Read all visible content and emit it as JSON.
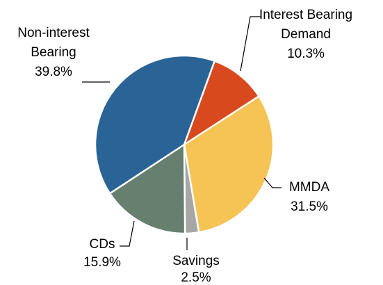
{
  "chart_data": {
    "type": "pie",
    "categories": [
      "Interest Bearing Demand",
      "MMDA",
      "Savings",
      "CDs",
      "Non-interest Bearing"
    ],
    "values": [
      10.3,
      31.5,
      2.5,
      15.9,
      39.8
    ],
    "value_labels": [
      "10.3%",
      "31.5%",
      "2.5%",
      "15.9%",
      "39.8%"
    ],
    "colors": [
      "#d9491e",
      "#f6c455",
      "#a6a6a6",
      "#667f6e",
      "#2a6496"
    ]
  }
}
